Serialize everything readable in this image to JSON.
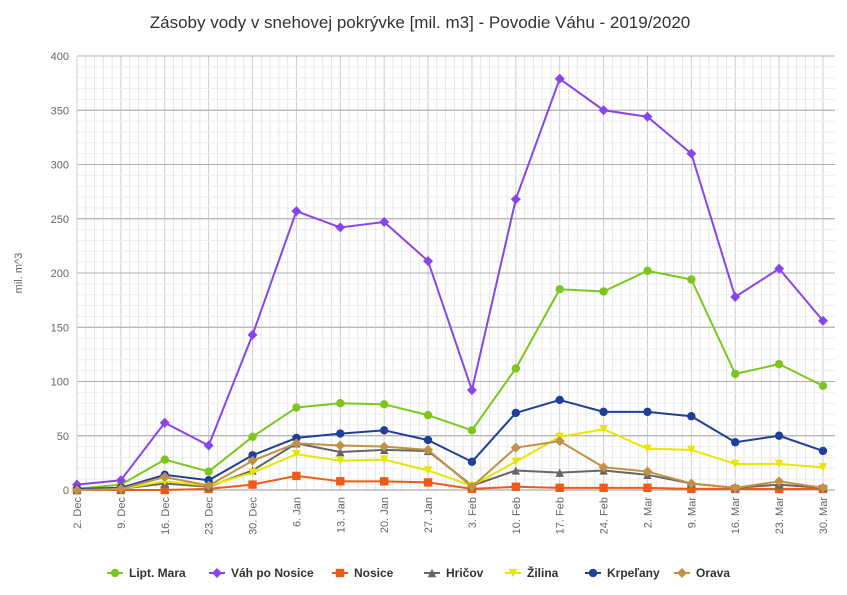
{
  "chart_data": {
    "type": "line",
    "title": "Zásoby vody v snehovej pokrývke [mil. m3] - Povodie Váhu - 2019/2020",
    "ylabel": "mil. m^3",
    "xlabel": "",
    "ylim": [
      0,
      400
    ],
    "yticks": [
      0,
      50,
      100,
      150,
      200,
      250,
      300,
      350,
      400
    ],
    "grid": true,
    "legend_position": "bottom",
    "categories": [
      "2. Dec",
      "9. Dec",
      "16. Dec",
      "23. Dec",
      "30. Dec",
      "6. Jan",
      "13. Jan",
      "20. Jan",
      "27. Jan",
      "3. Feb",
      "10. Feb",
      "17. Feb",
      "24. Feb",
      "2. Mar",
      "9. Mar",
      "16. Mar",
      "23. Mar",
      "30. Mar"
    ],
    "series": [
      {
        "name": "Lipt. Mara",
        "color": "#7cc61f",
        "marker": "circle",
        "values": [
          1,
          5,
          28,
          17,
          49,
          76,
          80,
          79,
          69,
          55,
          112,
          185,
          183,
          202,
          194,
          107,
          116,
          96
        ]
      },
      {
        "name": "Váh po Nosice",
        "color": "#8a44ee",
        "marker": "diamond",
        "values": [
          5,
          9,
          62,
          41,
          143,
          257,
          242,
          247,
          211,
          92,
          268,
          379,
          350,
          344,
          310,
          178,
          204,
          156
        ]
      },
      {
        "name": "Nosice",
        "color": "#f05a18",
        "marker": "square",
        "values": [
          0,
          0,
          0,
          1,
          5,
          13,
          8,
          8,
          7,
          1,
          3,
          2,
          2,
          2,
          1,
          1,
          1,
          1
        ]
      },
      {
        "name": "Hričov",
        "color": "#666666",
        "marker": "triangle",
        "values": [
          0,
          1,
          6,
          3,
          18,
          43,
          35,
          37,
          36,
          4,
          18,
          16,
          18,
          14,
          6,
          2,
          5,
          2
        ]
      },
      {
        "name": "Žilina",
        "color": "#e6e600",
        "marker": "triangle-down",
        "values": [
          0,
          1,
          8,
          4,
          16,
          33,
          27,
          28,
          18,
          4,
          26,
          49,
          56,
          38,
          37,
          24,
          24,
          21
        ]
      },
      {
        "name": "Krpeľany",
        "color": "#1f3f99",
        "marker": "circle",
        "values": [
          1,
          2,
          14,
          9,
          32,
          48,
          52,
          55,
          46,
          26,
          71,
          83,
          72,
          72,
          68,
          44,
          50,
          36
        ]
      },
      {
        "name": "Orava",
        "color": "#c09248",
        "marker": "diamond",
        "values": [
          0,
          1,
          12,
          4,
          27,
          43,
          41,
          40,
          37,
          3,
          39,
          45,
          21,
          17,
          6,
          2,
          8,
          2
        ]
      }
    ]
  }
}
